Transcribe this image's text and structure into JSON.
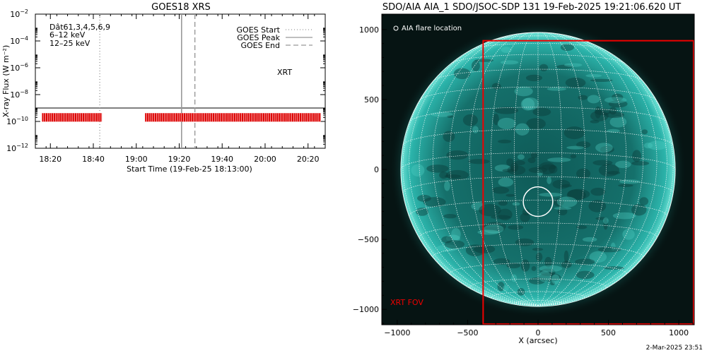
{
  "footer_text": "2-Mar-2025 23:51",
  "chart_data": [
    {
      "type": "line",
      "title": "GOES18 XRS",
      "xlabel": "Start Time (19-Feb-25 18:13:00)",
      "ylabel": "X-ray Flux (W m⁻²)",
      "x_tick_labels": [
        "18:20",
        "18:40",
        "19:00",
        "19:20",
        "19:40",
        "20:00",
        "20:20"
      ],
      "x_tick_minutes": [
        7,
        27,
        47,
        67,
        87,
        107,
        127
      ],
      "xlim_minutes": [
        0,
        135
      ],
      "yscale": "log",
      "ylim": [
        1e-12,
        0.01
      ],
      "y_tick_exponents": [
        -12,
        -10,
        -8,
        -6,
        -4,
        -2
      ],
      "y_tick_base": "10",
      "annotations": [
        {
          "text": "Dât61,3,4,5,6,9",
          "color": "#000000"
        },
        {
          "text": "6–12 keV",
          "color": "#cc00cc"
        },
        {
          "text": "12–25 keV",
          "color": "#22cc22"
        },
        {
          "text": "XRT",
          "color": "#dd0000"
        }
      ],
      "legend": [
        {
          "label": "GOES Start",
          "style": "dotted",
          "x_minutes": 30
        },
        {
          "label": "GOES Peak",
          "style": "solid",
          "x_minutes": 68.1
        },
        {
          "label": "GOES End",
          "style": "dashed",
          "x_minutes": 74.3
        }
      ],
      "reference_line": {
        "y": 1e-09
      },
      "xrt_bars": {
        "y": 2e-10,
        "segments": [
          [
            3,
            31
          ],
          [
            51,
            133
          ]
        ],
        "color": "#dd0000"
      }
    },
    {
      "type": "image",
      "title": "SDO/AIA AIA_1 SDO/JSOC-SDP 131 19-Feb-2025 19:21:06.620 UT",
      "xlabel": "X (arcsec)",
      "ylabel": "",
      "xlim": [
        -1110,
        1110
      ],
      "ylim": [
        -1110,
        1110
      ],
      "x_ticks": [
        -1000,
        -500,
        0,
        500,
        1000
      ],
      "x_tick_labels": [
        "−1000",
        "−500",
        "0",
        "500",
        "1000"
      ],
      "y_ticks": [
        -1000,
        -500,
        0,
        500,
        1000
      ],
      "y_tick_labels": [
        "−1000",
        "−500",
        "0",
        "500",
        "1000"
      ],
      "solar_radius": 975,
      "flare_location": {
        "x": 0,
        "y": -230,
        "radius": 105,
        "label": "AIA flare location"
      },
      "xrt_fov": {
        "x0": -390,
        "x1": 1105,
        "y0": -1105,
        "y1": 920,
        "label": "XRT FOV",
        "color": "#ee0000"
      },
      "disk_color": "#1a8f8a",
      "background_color": "#061413"
    }
  ]
}
